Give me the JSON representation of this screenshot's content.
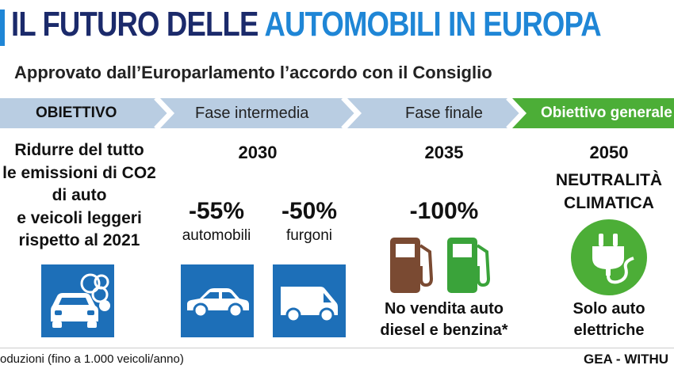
{
  "header": {
    "title_part1": "IL FUTURO DELLE ",
    "title_part2": "AUTOMOBILI IN EUROPA",
    "subtitle": "Approvato dall’Europarlamento l’accordo con il Consiglio"
  },
  "steps": [
    {
      "label": "OBIETTIVO"
    },
    {
      "label": "Fase intermedia"
    },
    {
      "label": "Fase finale"
    },
    {
      "label": "Obiettivo generale"
    }
  ],
  "objective": {
    "lines": [
      "Ridurre del tutto",
      "le emissioni di CO2",
      "di auto",
      "e veicoli leggeri",
      "rispetto al 2021"
    ]
  },
  "intermediate": {
    "year": "2030",
    "items": [
      {
        "pct": "-55%",
        "label": "automobili"
      },
      {
        "pct": "-50%",
        "label": "furgoni"
      }
    ]
  },
  "final": {
    "year": "2035",
    "pct": "-100%",
    "note_lines": [
      "No vendita auto",
      "diesel e benzina*"
    ]
  },
  "general": {
    "year": "2050",
    "title_lines": [
      "NEUTRALITÀ",
      "CLIMATICA"
    ],
    "note_lines": [
      "Solo auto",
      "elettriche"
    ]
  },
  "footer": {
    "note": "oduzioni (fino a 1.000 veicoli/anno)",
    "credit": "GEA - WITHU"
  },
  "colors": {
    "title_dark": "#1b2a6b",
    "title_accent": "#1f86d6",
    "band_light": "#b9cde2",
    "band_green": "#4cae37",
    "tile_blue": "#1d6fb8",
    "pump_brown": "#7a4a32",
    "pump_green": "#3aa33a",
    "circle_green": "#4cae37"
  }
}
